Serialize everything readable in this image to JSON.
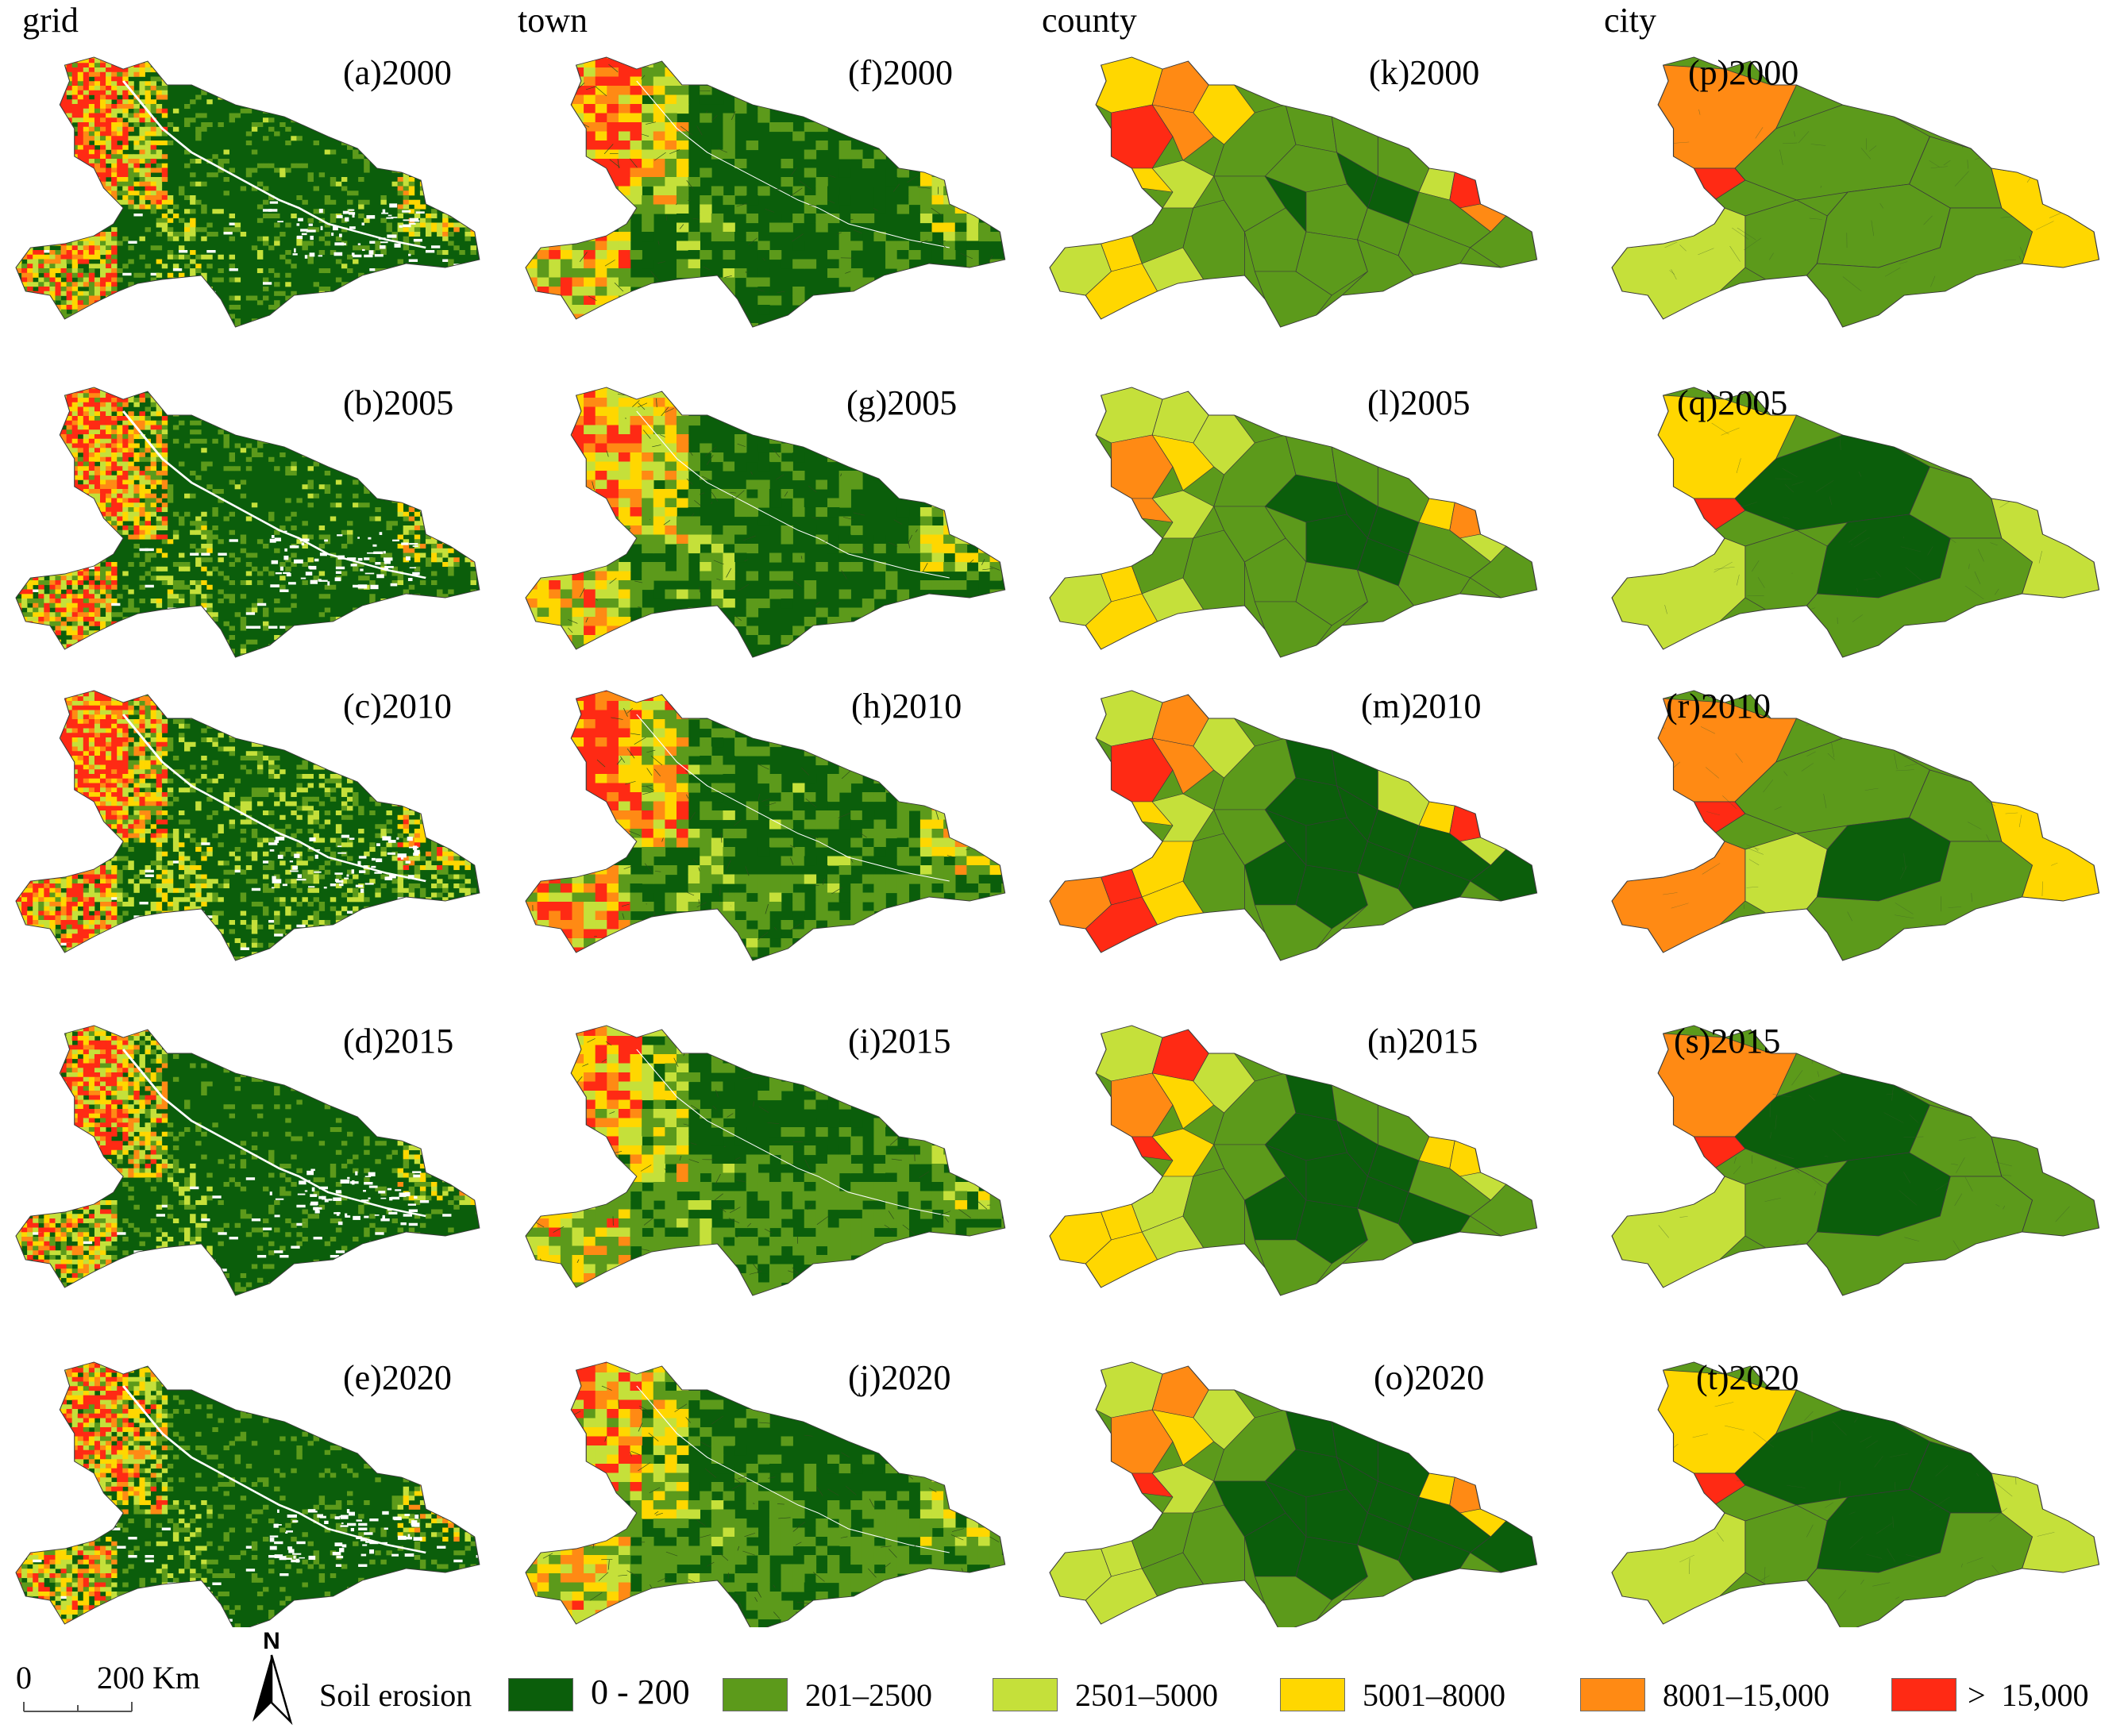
{
  "columns": [
    "grid",
    "town",
    "county",
    "city"
  ],
  "panels": [
    [
      "(a)2000",
      "(f)2000",
      "(k)2000",
      "(p)2000"
    ],
    [
      "(b)2005",
      "(g)2005",
      "(l)2005",
      "(q)2005"
    ],
    [
      "(c)2010",
      "(h)2010",
      "(m)2010",
      "(r)2010"
    ],
    [
      "(d)2015",
      "(i)2015",
      "(n)2015",
      "(s)2015"
    ],
    [
      "(e)2020",
      "(j)2020",
      "(o)2020",
      "(t)2020"
    ]
  ],
  "legend": {
    "title": "Soil erosion",
    "classes": [
      {
        "label": "0 - 200",
        "color": "#0b5e0b"
      },
      {
        "label": "201–2500",
        "color": "#5c9a1b"
      },
      {
        "label": "2501–5000",
        "color": "#c5e03a"
      },
      {
        "label": "5001–8000",
        "color": "#ffd700"
      },
      {
        "label": "8001–15,000",
        "color": "#ff8a14"
      },
      {
        "label": ">  15,000",
        "color": "#ff2a14"
      }
    ]
  },
  "scale_bar": {
    "zero": "0",
    "label": "200 Km"
  },
  "north_arrow": {
    "label": "N"
  },
  "colors": {
    "outline": "#3a3a3a",
    "river": "#ffffff"
  }
}
